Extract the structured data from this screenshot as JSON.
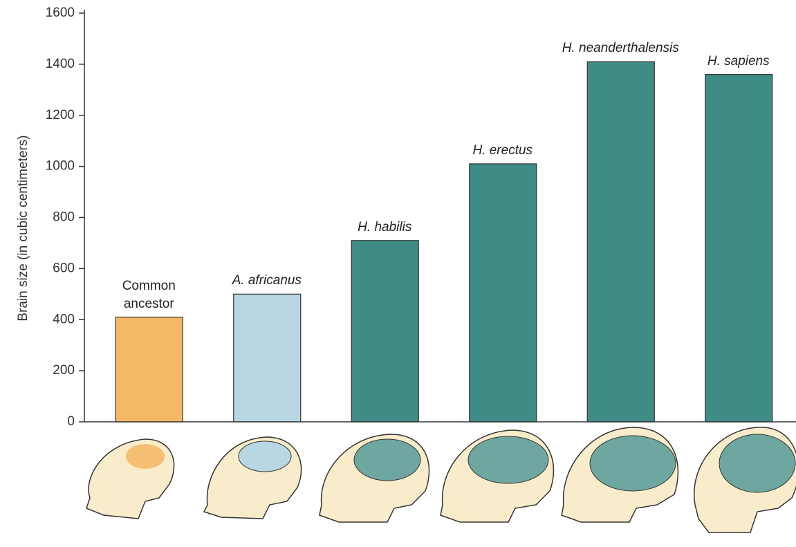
{
  "chart_data": {
    "type": "bar",
    "y_label": "Brain size (in cubic centimeters)",
    "categories": [
      "Common ancestor",
      "A. africanus",
      "H. habilis",
      "H. erectus",
      "H. neanderthalensis",
      "H. sapiens"
    ],
    "values": [
      410,
      500,
      710,
      1010,
      1410,
      1360
    ],
    "colors": [
      "#f5b965",
      "#b8d7e2",
      "#3f8c86",
      "#3f8c86",
      "#3f8c86",
      "#3f8c86"
    ],
    "ylim": [
      0,
      1600
    ],
    "yticks": [
      0,
      200,
      400,
      600,
      800,
      1000,
      1200,
      1400,
      1600
    ]
  }
}
